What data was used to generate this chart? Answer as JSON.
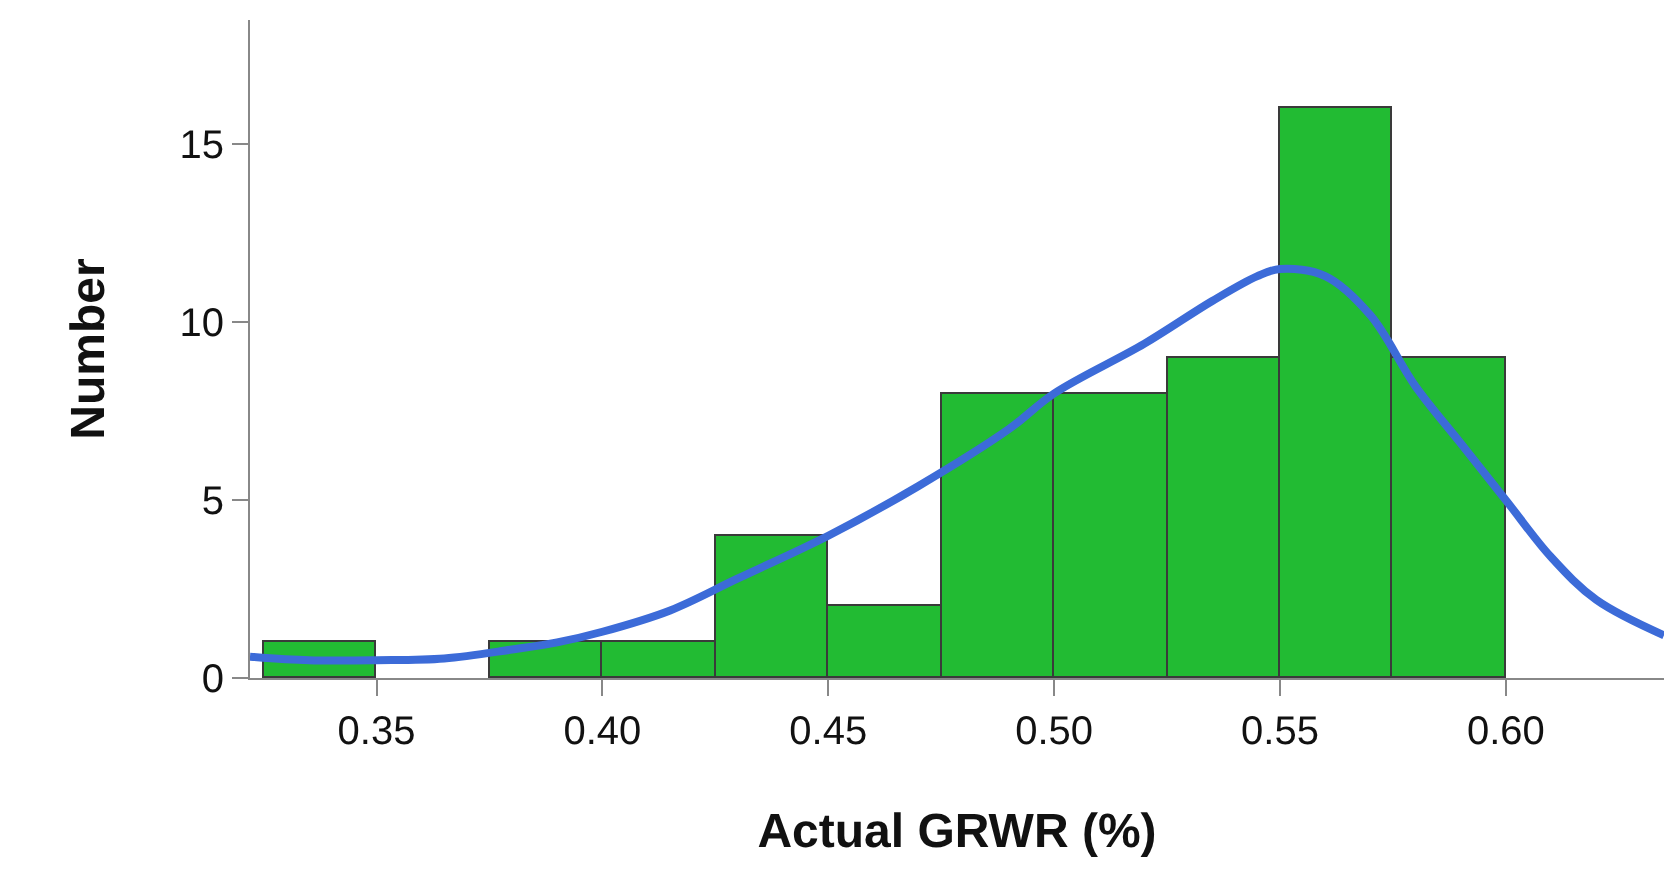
{
  "chart_data": {
    "type": "histogram",
    "xlabel": "Actual GRWR (%)",
    "ylabel": "Number",
    "bins": [
      0.325,
      0.35,
      0.375,
      0.4,
      0.425,
      0.45,
      0.475,
      0.5,
      0.525,
      0.55,
      0.575,
      0.6
    ],
    "values": [
      1,
      0,
      1,
      1,
      4,
      2,
      8,
      8,
      9,
      16,
      9
    ],
    "color": "#22bb33",
    "series": [
      {
        "type": "line",
        "color": "#3c6bd8",
        "x": [
          0.322,
          0.335,
          0.35,
          0.365,
          0.38,
          0.39,
          0.4,
          0.415,
          0.43,
          0.45,
          0.47,
          0.49,
          0.5,
          0.52,
          0.535,
          0.545,
          0.55,
          0.56,
          0.57,
          0.58,
          0.59,
          0.6,
          0.61,
          0.62,
          0.635
        ],
        "values": [
          0.6,
          0.5,
          0.5,
          0.55,
          0.8,
          1.0,
          1.3,
          1.9,
          2.8,
          4.0,
          5.4,
          7.0,
          8.0,
          9.4,
          10.6,
          11.3,
          11.5,
          11.3,
          10.2,
          8.2,
          6.6,
          5.0,
          3.4,
          2.2,
          1.2
        ]
      }
    ],
    "xlim": [
      0.322,
      0.635
    ],
    "xticks": [
      {
        "value": 0.35,
        "label": "0.35"
      },
      {
        "value": 0.4,
        "label": "0.40"
      },
      {
        "value": 0.45,
        "label": "0.45"
      },
      {
        "value": 0.5,
        "label": "0.50"
      },
      {
        "value": 0.55,
        "label": "0.55"
      },
      {
        "value": 0.6,
        "label": "0.60"
      }
    ],
    "ylim": [
      0,
      18.5
    ],
    "yticks": [
      0,
      5,
      10,
      15
    ],
    "grid": false
  }
}
